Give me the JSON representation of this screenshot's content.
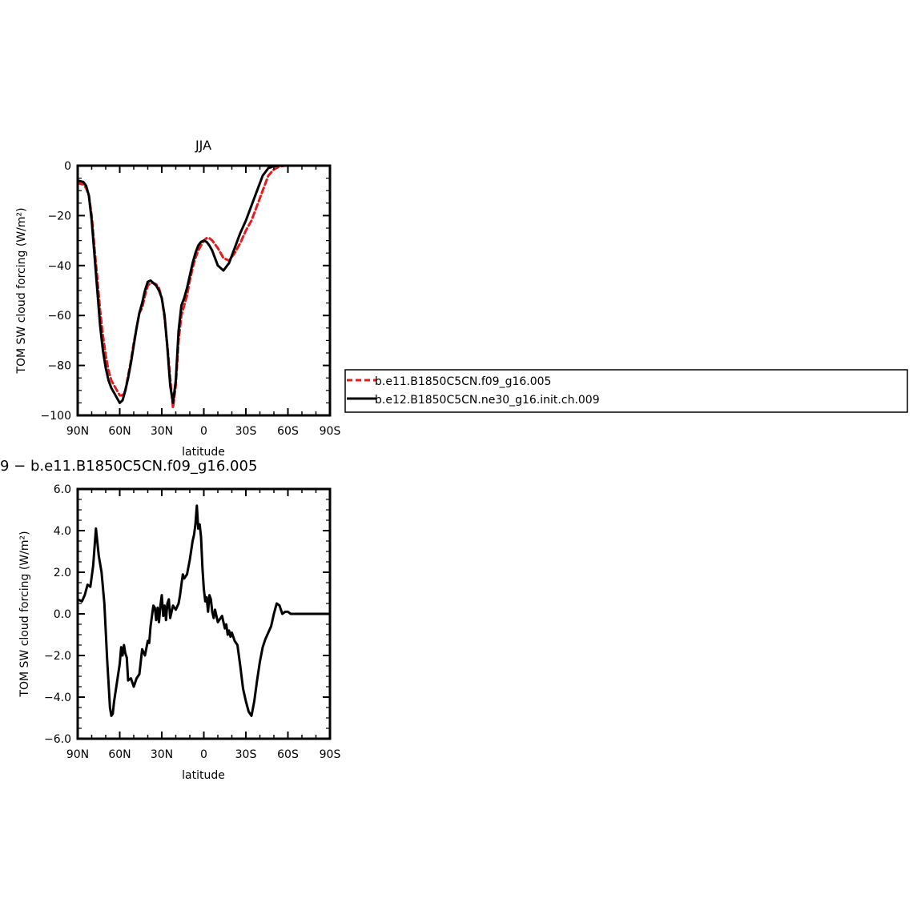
{
  "colors": {
    "model1": "#e41a1c",
    "model2": "#000000",
    "axis": "#000000",
    "background": "#ffffff"
  },
  "legend": {
    "items": [
      {
        "label": "b.e11.B1850C5CN.f09_g16.005",
        "color": "#e41a1c",
        "dash": true
      },
      {
        "label": "b.e12.B1850C5CN.ne30_g16.init.ch.009",
        "color": "#000000",
        "dash": false
      }
    ]
  },
  "chart_data": [
    {
      "type": "line",
      "title": "JJA",
      "xlabel": "latitude",
      "ylabel": "TOM SW cloud forcing (W/m²)",
      "xlim": [
        90,
        -90
      ],
      "ylim": [
        -100,
        0
      ],
      "xticks": [
        90,
        60,
        30,
        0,
        -30,
        -60,
        -90
      ],
      "xticklabels": [
        "90N",
        "60N",
        "30N",
        "0",
        "30S",
        "60S",
        "90S"
      ],
      "yticks": [
        0,
        -20,
        -40,
        -60,
        -80,
        -100
      ],
      "yticklabels": [
        "0",
        "−20",
        "−40",
        "−60",
        "−80",
        "−100"
      ],
      "grid": false,
      "legend_position": "right",
      "series": [
        {
          "name": "b.e11.B1850C5CN.f09_g16.005",
          "style": "dashed",
          "x": [
            90,
            86,
            84,
            82,
            80,
            78,
            76,
            74,
            72,
            70,
            68,
            66,
            64,
            62,
            60,
            58,
            56,
            54,
            52,
            50,
            48,
            46,
            44,
            42,
            40,
            38,
            36,
            34,
            32,
            30,
            28,
            26,
            24,
            22,
            20,
            18,
            16,
            14,
            12,
            10,
            8,
            6,
            4,
            2,
            0,
            -2,
            -4,
            -6,
            -10,
            -14,
            -18,
            -22,
            -26,
            -30,
            -34,
            -38,
            -42,
            -46,
            -50,
            -54,
            -58,
            -62,
            -64,
            -66,
            -70,
            -74,
            -80,
            -86,
            -90
          ],
          "y": [
            -7,
            -7.5,
            -9,
            -12,
            -20,
            -33,
            -45,
            -58,
            -68,
            -76,
            -82,
            -86,
            -88,
            -90,
            -92,
            -92,
            -90,
            -84,
            -78,
            -71,
            -65,
            -59,
            -57,
            -52,
            -48,
            -47,
            -47,
            -47.5,
            -49,
            -53,
            -61,
            -72,
            -85,
            -97,
            -88,
            -70,
            -60,
            -56,
            -52,
            -46,
            -41,
            -37,
            -34,
            -32,
            -30,
            -29,
            -29,
            -30,
            -33,
            -37,
            -38,
            -35,
            -31,
            -26,
            -22,
            -16,
            -10,
            -4,
            -1.5,
            -0.3,
            0,
            0,
            0,
            0,
            0,
            0,
            0,
            0,
            0
          ]
        },
        {
          "name": "b.e12.B1850C5CN.ne30_g16.init.ch.009",
          "style": "solid",
          "x": [
            90,
            86,
            84,
            82,
            80,
            78,
            76,
            74,
            72,
            70,
            68,
            66,
            64,
            62,
            60,
            58,
            56,
            54,
            52,
            50,
            48,
            46,
            44,
            42,
            40,
            38,
            36,
            34,
            32,
            30,
            28,
            26,
            24,
            22,
            20,
            18,
            16,
            14,
            12,
            10,
            8,
            6,
            4,
            2,
            0,
            -2,
            -4,
            -6,
            -10,
            -14,
            -18,
            -22,
            -26,
            -30,
            -34,
            -38,
            -42,
            -46,
            -50,
            -54,
            -58,
            -62,
            -64,
            -66,
            -70,
            -74,
            -80,
            -86,
            -90
          ],
          "y": [
            -6,
            -6.5,
            -8,
            -12,
            -22,
            -36,
            -50,
            -64,
            -74,
            -81,
            -86,
            -89,
            -91,
            -93,
            -95,
            -94,
            -90,
            -85,
            -79,
            -72,
            -65,
            -59,
            -55,
            -50,
            -46.5,
            -46,
            -47,
            -48,
            -50,
            -53,
            -60,
            -73,
            -88,
            -95,
            -86,
            -66,
            -56,
            -53,
            -49,
            -44,
            -39,
            -35,
            -32,
            -30.5,
            -30,
            -30.5,
            -32,
            -34,
            -40,
            -42,
            -39,
            -33,
            -27,
            -22,
            -16,
            -10,
            -4,
            -1,
            -0.2,
            0,
            0,
            0,
            0,
            0,
            0,
            0,
            0,
            0,
            0
          ]
        }
      ]
    },
    {
      "type": "line",
      "title": "9 − b.e11.B1850C5CN.f09_g16.005",
      "xlabel": "latitude",
      "ylabel": "TOM SW cloud forcing (W/m²)",
      "xlim": [
        90,
        -90
      ],
      "ylim": [
        -6,
        6
      ],
      "xticks": [
        90,
        60,
        30,
        0,
        -30,
        -60,
        -90
      ],
      "xticklabels": [
        "90N",
        "60N",
        "30N",
        "0",
        "30S",
        "60S",
        "90S"
      ],
      "yticks": [
        6,
        4,
        2,
        0,
        -2,
        -4,
        -6
      ],
      "yticklabels": [
        "6.0",
        "4.0",
        "2.0",
        "0.0",
        "−2.0",
        "−4.0",
        "−6.0"
      ],
      "grid": false,
      "series": [
        {
          "style": "solid",
          "x": [
            90,
            87,
            85,
            83,
            81,
            79,
            77,
            75,
            73,
            71,
            70,
            69,
            68,
            67,
            66,
            65,
            64,
            62,
            60,
            59,
            58,
            57,
            56,
            55,
            54,
            52,
            50,
            48,
            46,
            44,
            42,
            40,
            39,
            38,
            36,
            35,
            34,
            33,
            32,
            31,
            30,
            29,
            28,
            27,
            26,
            25,
            24,
            22,
            20,
            18,
            17,
            16,
            15,
            14,
            12,
            10,
            8,
            7,
            6,
            5,
            4,
            3,
            2,
            1,
            0,
            -1,
            -2,
            -3,
            -4,
            -5,
            -6,
            -7,
            -8,
            -10,
            -12,
            -13,
            -14,
            -15,
            -16,
            -17,
            -18,
            -19,
            -20,
            -22,
            -24,
            -26,
            -28,
            -30,
            -32,
            -34,
            -36,
            -38,
            -40,
            -42,
            -44,
            -46,
            -48,
            -50,
            -52,
            -54,
            -56,
            -58,
            -60,
            -62,
            -64,
            -66,
            -68,
            -70,
            -74,
            -80,
            -90
          ],
          "y": [
            0.7,
            0.6,
            0.9,
            1.4,
            1.3,
            2.3,
            4.1,
            2.8,
            2.0,
            0.5,
            -0.8,
            -2.2,
            -3.3,
            -4.5,
            -4.9,
            -4.8,
            -4.2,
            -3.3,
            -2.4,
            -1.6,
            -2.0,
            -1.5,
            -1.9,
            -2.1,
            -3.2,
            -3.1,
            -3.5,
            -3.1,
            -2.9,
            -1.7,
            -2.0,
            -1.3,
            -1.4,
            -0.6,
            0.4,
            0.3,
            -0.3,
            0.3,
            -0.4,
            0.4,
            0.9,
            -0.1,
            0.4,
            -0.3,
            0.5,
            0.7,
            -0.2,
            0.4,
            0.2,
            0.5,
            0.9,
            1.4,
            1.9,
            1.7,
            1.9,
            2.6,
            3.5,
            3.8,
            4.3,
            5.2,
            4.1,
            4.3,
            3.7,
            2.2,
            1.2,
            0.6,
            0.8,
            0.1,
            0.9,
            0.7,
            0.1,
            -0.2,
            0.2,
            -0.4,
            -0.2,
            -0.1,
            -0.4,
            -0.7,
            -0.5,
            -1.0,
            -0.8,
            -1.1,
            -0.9,
            -1.3,
            -1.5,
            -2.5,
            -3.6,
            -4.2,
            -4.7,
            -4.9,
            -4.2,
            -3.2,
            -2.3,
            -1.6,
            -1.2,
            -0.9,
            -0.6,
            0.0,
            0.5,
            0.4,
            0.0,
            0.1,
            0.1,
            0.0,
            0.0,
            0.0,
            0.0,
            0.0,
            0.0,
            0.0,
            0.0
          ]
        }
      ]
    }
  ]
}
